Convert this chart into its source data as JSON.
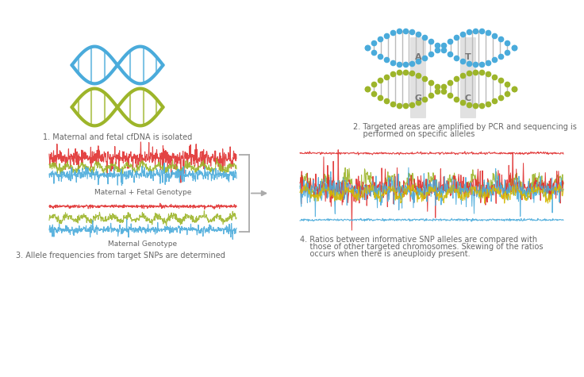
{
  "bg_color": "#ffffff",
  "dna_blue": "#4aabdb",
  "dna_green": "#9db52a",
  "dna_gray": "#aaaaaa",
  "red_signal": "#e03030",
  "blue_signal": "#4aabdb",
  "green_signal": "#9db52a",
  "yellow_signal": "#d4b800",
  "label1": "1. Maternal and fetal cfDNA is isolated",
  "label2_line1": "2. Targeted areas are amplified by PCR and sequencing is",
  "label2_line2": "    performed on specific alleles",
  "label3": "3. Allele frequencies from target SNPs are determined",
  "label4_line1": "4. Ratios between informative SNP alleles are compared with",
  "label4_line2": "    those of other targeted chromosomes. Skewing of the ratios",
  "label4_line3": "    occurs when there is aneuploidy present.",
  "mat_fetal": "Maternal + Fetal Genotype",
  "mat_only": "Maternal Genotype",
  "font_size_label": 7,
  "text_color": "#666666"
}
